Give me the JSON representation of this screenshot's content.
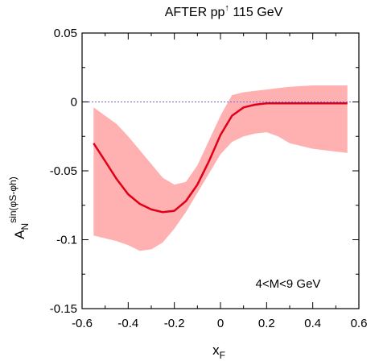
{
  "chart_data": {
    "type": "area",
    "title": {
      "pre": "AFTER pp",
      "sup": "↑",
      "post": " 115 GeV"
    },
    "xlabel": {
      "main": "x",
      "sub": "F"
    },
    "ylabel": {
      "main": "A",
      "sub": "N",
      "sup": "sin(φS-φh)"
    },
    "annotation": "4<M<9 GeV",
    "xlim": [
      -0.6,
      0.6
    ],
    "ylim": [
      -0.15,
      0.05
    ],
    "x_ticks": [
      -0.6,
      -0.4,
      -0.2,
      0,
      0.2,
      0.4,
      0.6
    ],
    "x_tick_labels": [
      "-0.6",
      "-0.4",
      "-0.2",
      "0",
      "0.2",
      "0.4",
      "0.6"
    ],
    "y_ticks": [
      -0.15,
      -0.1,
      -0.05,
      0,
      0.05
    ],
    "y_tick_labels": [
      "-0.15",
      "-0.1",
      "-0.05",
      "0",
      "0.05"
    ],
    "reference_line_y": 0,
    "colors": {
      "curve": "#e0001a",
      "band": "#ffb0b0",
      "reference": "#6b6bdc"
    },
    "series": [
      {
        "x": [
          -0.55,
          -0.5,
          -0.45,
          -0.4,
          -0.35,
          -0.3,
          -0.25,
          -0.2,
          -0.15,
          -0.1,
          -0.05,
          0.0,
          0.05,
          0.1,
          0.15,
          0.2,
          0.25,
          0.3,
          0.4,
          0.5,
          0.55
        ],
        "y": [
          -0.03,
          -0.043,
          -0.056,
          -0.067,
          -0.074,
          -0.078,
          -0.08,
          -0.079,
          -0.072,
          -0.06,
          -0.043,
          -0.024,
          -0.01,
          -0.004,
          -0.002,
          -0.001,
          -0.001,
          -0.001,
          -0.001,
          -0.001,
          -0.001
        ],
        "upper": [
          -0.004,
          -0.01,
          -0.016,
          -0.025,
          -0.035,
          -0.045,
          -0.055,
          -0.06,
          -0.058,
          -0.046,
          -0.028,
          -0.01,
          0.005,
          0.007,
          0.008,
          0.009,
          0.01,
          0.011,
          0.012,
          0.012,
          0.012
        ],
        "lower": [
          -0.097,
          -0.099,
          -0.101,
          -0.104,
          -0.108,
          -0.107,
          -0.102,
          -0.092,
          -0.08,
          -0.066,
          -0.052,
          -0.038,
          -0.029,
          -0.025,
          -0.023,
          -0.022,
          -0.025,
          -0.03,
          -0.034,
          -0.036,
          -0.037
        ]
      }
    ]
  }
}
